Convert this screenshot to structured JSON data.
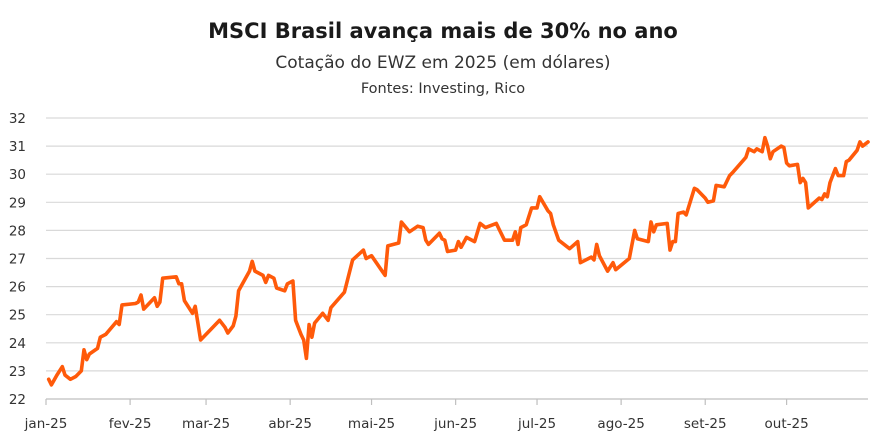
{
  "chart_data": {
    "type": "line",
    "title": "MSCI Brasil avança mais de 30% no ano",
    "subtitle": "Cotação do EWZ em 2025 (em dólares)",
    "source": "Fontes: Investing, Rico",
    "xlabel": "",
    "ylabel": "",
    "ylim": [
      22,
      32
    ],
    "yticks": [
      22,
      23,
      24,
      25,
      26,
      27,
      28,
      29,
      30,
      31,
      32
    ],
    "xlim": [
      "2025-01-01",
      "2025-10-31"
    ],
    "xticks": [
      {
        "date": "2025-01-01",
        "label": "jan-25"
      },
      {
        "date": "2025-02-01",
        "label": "fev-25"
      },
      {
        "date": "2025-03-01",
        "label": "mar-25"
      },
      {
        "date": "2025-04-01",
        "label": "abr-25"
      },
      {
        "date": "2025-05-01",
        "label": "mai-25"
      },
      {
        "date": "2025-06-01",
        "label": "jun-25"
      },
      {
        "date": "2025-07-01",
        "label": "jul-25"
      },
      {
        "date": "2025-08-01",
        "label": "ago-25"
      },
      {
        "date": "2025-09-01",
        "label": "set-25"
      },
      {
        "date": "2025-10-01",
        "label": "out-25"
      }
    ],
    "grid": true,
    "line_color": "#FF5A0A",
    "series": [
      {
        "points": [
          [
            "2025-01-02",
            22.7
          ],
          [
            "2025-01-03",
            22.5
          ],
          [
            "2025-01-05",
            22.85
          ],
          [
            "2025-01-07",
            23.15
          ],
          [
            "2025-01-08",
            22.85
          ],
          [
            "2025-01-10",
            22.7
          ],
          [
            "2025-01-12",
            22.8
          ],
          [
            "2025-01-14",
            23.0
          ],
          [
            "2025-01-15",
            23.75
          ],
          [
            "2025-01-16",
            23.4
          ],
          [
            "2025-01-17",
            23.6
          ],
          [
            "2025-01-20",
            23.8
          ],
          [
            "2025-01-21",
            24.2
          ],
          [
            "2025-01-23",
            24.3
          ],
          [
            "2025-01-27",
            24.75
          ],
          [
            "2025-01-28",
            24.65
          ],
          [
            "2025-01-29",
            25.35
          ],
          [
            "2025-02-03",
            25.4
          ],
          [
            "2025-02-04",
            25.45
          ],
          [
            "2025-02-05",
            25.7
          ],
          [
            "2025-02-06",
            25.2
          ],
          [
            "2025-02-10",
            25.6
          ],
          [
            "2025-02-11",
            25.3
          ],
          [
            "2025-02-12",
            25.45
          ],
          [
            "2025-02-13",
            26.3
          ],
          [
            "2025-02-18",
            26.35
          ],
          [
            "2025-02-19",
            26.1
          ],
          [
            "2025-02-20",
            26.1
          ],
          [
            "2025-02-21",
            25.5
          ],
          [
            "2025-02-24",
            25.05
          ],
          [
            "2025-02-25",
            25.3
          ],
          [
            "2025-02-26",
            24.7
          ],
          [
            "2025-02-27",
            24.1
          ],
          [
            "2025-03-04",
            24.6
          ],
          [
            "2025-03-06",
            24.8
          ],
          [
            "2025-03-08",
            24.55
          ],
          [
            "2025-03-09",
            24.35
          ],
          [
            "2025-03-11",
            24.6
          ],
          [
            "2025-03-12",
            24.95
          ],
          [
            "2025-03-13",
            25.85
          ],
          [
            "2025-03-17",
            26.55
          ],
          [
            "2025-03-18",
            26.9
          ],
          [
            "2025-03-19",
            26.55
          ],
          [
            "2025-03-22",
            26.4
          ],
          [
            "2025-03-23",
            26.15
          ],
          [
            "2025-03-24",
            26.4
          ],
          [
            "2025-03-26",
            26.3
          ],
          [
            "2025-03-27",
            25.95
          ],
          [
            "2025-03-30",
            25.85
          ],
          [
            "2025-03-31",
            26.1
          ],
          [
            "2025-04-02",
            26.2
          ],
          [
            "2025-04-03",
            24.8
          ],
          [
            "2025-04-05",
            24.3
          ],
          [
            "2025-04-06",
            24.1
          ],
          [
            "2025-04-07",
            23.45
          ],
          [
            "2025-04-08",
            24.65
          ],
          [
            "2025-04-09",
            24.2
          ],
          [
            "2025-04-10",
            24.7
          ],
          [
            "2025-04-13",
            25.05
          ],
          [
            "2025-04-15",
            24.8
          ],
          [
            "2025-04-16",
            25.25
          ],
          [
            "2025-04-21",
            25.8
          ],
          [
            "2025-04-24",
            26.95
          ],
          [
            "2025-04-28",
            27.3
          ],
          [
            "2025-04-29",
            27.0
          ],
          [
            "2025-05-01",
            27.1
          ],
          [
            "2025-05-06",
            26.4
          ],
          [
            "2025-05-07",
            27.45
          ],
          [
            "2025-05-11",
            27.55
          ],
          [
            "2025-05-12",
            28.3
          ],
          [
            "2025-05-15",
            27.95
          ],
          [
            "2025-05-18",
            28.15
          ],
          [
            "2025-05-20",
            28.1
          ],
          [
            "2025-05-21",
            27.65
          ],
          [
            "2025-05-22",
            27.5
          ],
          [
            "2025-05-26",
            27.9
          ],
          [
            "2025-05-27",
            27.7
          ],
          [
            "2025-05-28",
            27.65
          ],
          [
            "2025-05-29",
            27.25
          ],
          [
            "2025-06-01",
            27.3
          ],
          [
            "2025-06-02",
            27.6
          ],
          [
            "2025-06-03",
            27.4
          ],
          [
            "2025-06-05",
            27.75
          ],
          [
            "2025-06-08",
            27.6
          ],
          [
            "2025-06-10",
            28.25
          ],
          [
            "2025-06-12",
            28.1
          ],
          [
            "2025-06-16",
            28.25
          ],
          [
            "2025-06-17",
            28.05
          ],
          [
            "2025-06-19",
            27.65
          ],
          [
            "2025-06-22",
            27.65
          ],
          [
            "2025-06-23",
            27.95
          ],
          [
            "2025-06-24",
            27.5
          ],
          [
            "2025-06-25",
            28.1
          ],
          [
            "2025-06-27",
            28.2
          ],
          [
            "2025-06-29",
            28.8
          ],
          [
            "2025-07-01",
            28.8
          ],
          [
            "2025-07-02",
            29.2
          ],
          [
            "2025-07-05",
            28.7
          ],
          [
            "2025-07-06",
            28.6
          ],
          [
            "2025-07-07",
            28.2
          ],
          [
            "2025-07-09",
            27.65
          ],
          [
            "2025-07-13",
            27.35
          ],
          [
            "2025-07-16",
            27.6
          ],
          [
            "2025-07-17",
            26.85
          ],
          [
            "2025-07-21",
            27.05
          ],
          [
            "2025-07-22",
            26.95
          ],
          [
            "2025-07-23",
            27.5
          ],
          [
            "2025-07-24",
            27.1
          ],
          [
            "2025-07-27",
            26.55
          ],
          [
            "2025-07-29",
            26.85
          ],
          [
            "2025-07-30",
            26.6
          ],
          [
            "2025-08-04",
            27.0
          ],
          [
            "2025-08-06",
            28.0
          ],
          [
            "2025-08-07",
            27.7
          ],
          [
            "2025-08-11",
            27.6
          ],
          [
            "2025-08-12",
            28.3
          ],
          [
            "2025-08-13",
            27.95
          ],
          [
            "2025-08-14",
            28.2
          ],
          [
            "2025-08-18",
            28.25
          ],
          [
            "2025-08-19",
            27.3
          ],
          [
            "2025-08-20",
            27.6
          ],
          [
            "2025-08-21",
            27.6
          ],
          [
            "2025-08-22",
            28.6
          ],
          [
            "2025-08-24",
            28.65
          ],
          [
            "2025-08-25",
            28.55
          ],
          [
            "2025-08-28",
            29.5
          ],
          [
            "2025-08-29",
            29.45
          ],
          [
            "2025-09-01",
            29.15
          ],
          [
            "2025-09-02",
            29.0
          ],
          [
            "2025-09-04",
            29.05
          ],
          [
            "2025-09-05",
            29.6
          ],
          [
            "2025-09-08",
            29.55
          ],
          [
            "2025-09-10",
            29.95
          ],
          [
            "2025-09-11",
            30.05
          ],
          [
            "2025-09-16",
            30.6
          ],
          [
            "2025-09-17",
            30.9
          ],
          [
            "2025-09-19",
            30.8
          ],
          [
            "2025-09-20",
            30.9
          ],
          [
            "2025-09-22",
            30.8
          ],
          [
            "2025-09-23",
            31.3
          ],
          [
            "2025-09-24",
            31.0
          ],
          [
            "2025-09-25",
            30.55
          ],
          [
            "2025-09-26",
            30.8
          ],
          [
            "2025-09-29",
            31.0
          ],
          [
            "2025-09-30",
            30.95
          ],
          [
            "2025-10-01",
            30.4
          ],
          [
            "2025-10-02",
            30.3
          ],
          [
            "2025-10-05",
            30.35
          ],
          [
            "2025-10-06",
            29.7
          ],
          [
            "2025-10-07",
            29.85
          ],
          [
            "2025-10-08",
            29.7
          ],
          [
            "2025-10-09",
            28.8
          ],
          [
            "2025-10-13",
            29.15
          ],
          [
            "2025-10-14",
            29.1
          ],
          [
            "2025-10-15",
            29.3
          ],
          [
            "2025-10-16",
            29.2
          ],
          [
            "2025-10-17",
            29.7
          ],
          [
            "2025-10-19",
            30.2
          ],
          [
            "2025-10-20",
            29.95
          ],
          [
            "2025-10-22",
            29.95
          ],
          [
            "2025-10-23",
            30.45
          ],
          [
            "2025-10-24",
            30.5
          ],
          [
            "2025-10-27",
            30.85
          ],
          [
            "2025-10-28",
            31.15
          ],
          [
            "2025-10-29",
            31.0
          ],
          [
            "2025-10-31",
            31.15
          ]
        ]
      }
    ]
  }
}
